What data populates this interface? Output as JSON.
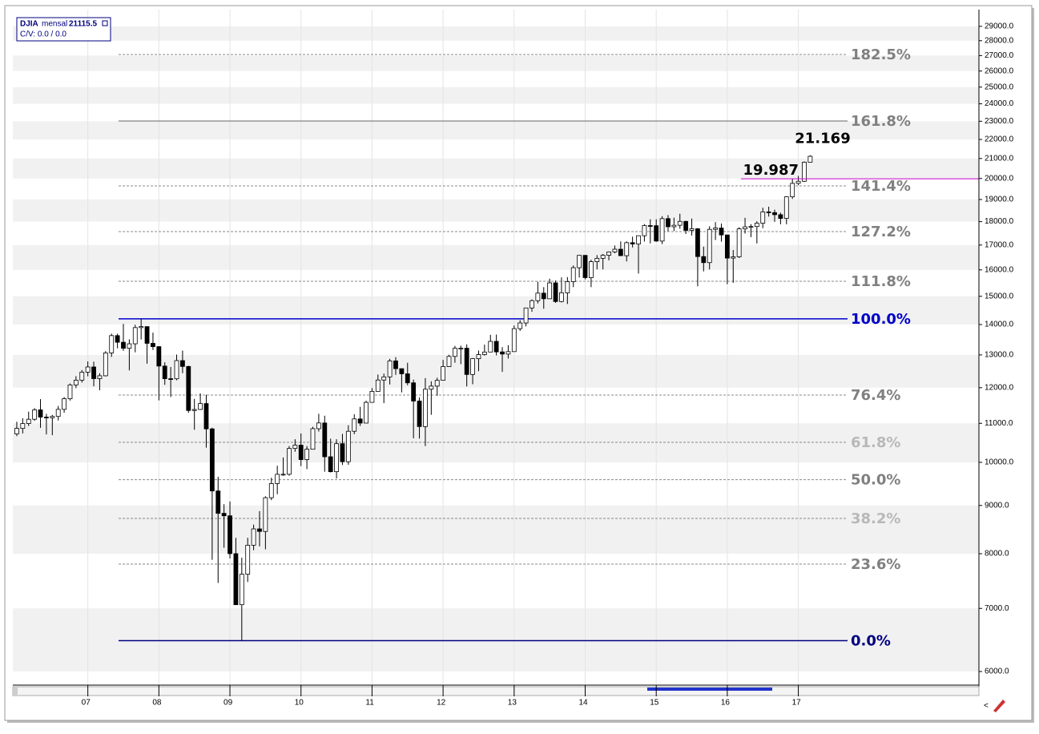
{
  "legend": {
    "symbol": "DJIA",
    "period": "mensal",
    "last_value": 21115.5,
    "cv": "C/V: 0.0 / 0.0"
  },
  "chart_data": {
    "type": "candlestick",
    "log_scale": true,
    "grid": true,
    "up_color": "#ffffff",
    "down_color": "#000000",
    "series": [
      {
        "name": "DJIA",
        "open": [
          10718,
          10864,
          10993,
          11109,
          11367,
          11168,
          11150,
          11186,
          11381,
          11679,
          12081,
          12221,
          12463,
          12622,
          12268,
          12354,
          13062,
          13627,
          13408,
          13212,
          13357,
          13896,
          13930,
          13372,
          13265,
          12650,
          12266,
          12263,
          12820,
          12638,
          11350,
          11378,
          11544,
          10851,
          9325,
          8829,
          8776,
          8001,
          7063,
          7609,
          8168,
          8500,
          8447,
          9172,
          9496,
          9712,
          9713,
          10345,
          10428,
          10067,
          10325,
          10857,
          11009,
          10137,
          9774,
          10466,
          10015,
          10788,
          11118,
          11006,
          11578,
          11892,
          12226,
          12320,
          12811,
          12570,
          12414,
          12143,
          11614,
          10913,
          11955,
          12046,
          12218,
          12633,
          12952,
          13212,
          13214,
          12393,
          12880,
          13009,
          13091,
          13437,
          13096,
          13026,
          13104,
          13861,
          14054,
          14579,
          14840,
          15116,
          14910,
          15500,
          14810,
          15130,
          15546,
          16086,
          16577,
          15699,
          16322,
          16458,
          16581,
          16717,
          16827,
          16563,
          17098,
          17043,
          17391,
          17828,
          17823,
          17165,
          18133,
          17776,
          17841,
          18011,
          17620,
          17690,
          16528,
          16285,
          17664,
          17720,
          17425,
          16466,
          16517,
          17685,
          17774,
          17787,
          17930,
          18432,
          18401,
          18308,
          18142,
          19124,
          19763,
          19864,
          20812
        ],
        "high": [
          11043,
          11137,
          11317,
          11416,
          11670,
          11258,
          11228,
          11477,
          11727,
          12124,
          12342,
          12529,
          12796,
          12786,
          12430,
          13121,
          13692,
          13692,
          14022,
          13504,
          13996,
          14198,
          13932,
          13726,
          13280,
          12767,
          12622,
          13010,
          13137,
          12658,
          11675,
          11832,
          11792,
          10883,
          9654,
          9026,
          9088,
          8316,
          7925,
          8318,
          8589,
          8877,
          9205,
          9630,
          9917,
          10119,
          10406,
          10580,
          10730,
          10406,
          10907,
          11258,
          11205,
          10594,
          10580,
          10720,
          10948,
          11245,
          11451,
          11625,
          11989,
          12391,
          12419,
          12876,
          12929,
          12570,
          12753,
          12240,
          11716,
          12284,
          12188,
          12294,
          12842,
          13005,
          13290,
          13297,
          13338,
          12899,
          13139,
          13331,
          13653,
          13662,
          13248,
          13311,
          13969,
          14149,
          14585,
          14888,
          15542,
          15340,
          15658,
          15591,
          15710,
          15721,
          16174,
          16588,
          16589,
          16399,
          16588,
          16632,
          16736,
          16979,
          17151,
          17153,
          17351,
          17395,
          17895,
          18103,
          18103,
          18244,
          18288,
          18175,
          18351,
          18040,
          18137,
          17715,
          16933,
          17799,
          17978,
          17916,
          17425,
          16795,
          17755,
          18168,
          17891,
          18017,
          18623,
          18668,
          18534,
          18399,
          19153,
          19988,
          20126,
          20851,
          21169
        ],
        "low": [
          10661,
          10731,
          10928,
          11067,
          10880,
          10706,
          10684,
          11076,
          11288,
          11628,
          11986,
          12151,
          12338,
          12039,
          11926,
          12334,
          12935,
          13211,
          13130,
          12517,
          13081,
          13498,
          12724,
          13157,
          11634,
          12083,
          11731,
          12219,
          12433,
          11287,
          10828,
          11364,
          10365,
          7882,
          7449,
          8118,
          7909,
          7063,
          6470,
          7467,
          8070,
          8144,
          8087,
          9118,
          9252,
          9679,
          9679,
          10263,
          9908,
          9835,
          10325,
          10781,
          9774,
          9757,
          9614,
          9936,
          9941,
          10711,
          10929,
          11006,
          11574,
          11892,
          11555,
          12094,
          12381,
          11862,
          12071,
          10604,
          10597,
          10405,
          11231,
          11766,
          12218,
          12623,
          12755,
          12710,
          12035,
          12101,
          12492,
          12977,
          13091,
          12983,
          12471,
          12883,
          13104,
          13784,
          13938,
          14444,
          14740,
          14551,
          14910,
          14761,
          14777,
          14720,
          15340,
          15703,
          15631,
          15340,
          16017,
          16015,
          16375,
          16659,
          16563,
          16333,
          16901,
          15855,
          17145,
          17068,
          17136,
          17037,
          17585,
          17593,
          17691,
          17465,
          17400,
          15370,
          15942,
          16013,
          17210,
          17139,
          15450,
          15503,
          16472,
          17484,
          17332,
          17063,
          17713,
          18223,
          17992,
          17884,
          17884,
          19024,
          19677,
          19831,
          20812
        ],
        "close": [
          10864,
          10993,
          11109,
          11367,
          11168,
          11150,
          11186,
          11381,
          11679,
          12081,
          12221,
          12463,
          12622,
          12268,
          12354,
          13062,
          13627,
          13408,
          13212,
          13357,
          13896,
          13930,
          13372,
          13265,
          12650,
          12266,
          12263,
          12820,
          12638,
          11350,
          11378,
          11544,
          10851,
          9325,
          8829,
          8776,
          8001,
          7063,
          7609,
          8168,
          8500,
          8447,
          9172,
          9496,
          9712,
          9713,
          10345,
          10428,
          10067,
          10325,
          10857,
          11009,
          10137,
          9774,
          10466,
          10015,
          10788,
          11118,
          11006,
          11578,
          11892,
          12226,
          12320,
          12811,
          12570,
          12414,
          12143,
          11614,
          10913,
          11955,
          12046,
          12218,
          12633,
          12952,
          13212,
          13214,
          12393,
          12880,
          13009,
          13091,
          13437,
          13096,
          13026,
          13104,
          13861,
          14054,
          14579,
          14840,
          15116,
          14910,
          15500,
          14810,
          15130,
          15546,
          16086,
          16577,
          15699,
          16322,
          16458,
          16581,
          16717,
          16827,
          16563,
          17098,
          17043,
          17391,
          17828,
          17823,
          17165,
          18133,
          17776,
          17841,
          18011,
          17620,
          17690,
          16528,
          16285,
          17664,
          17720,
          17425,
          16466,
          16517,
          17685,
          17774,
          17787,
          17930,
          18432,
          18401,
          18308,
          18142,
          19124,
          19763,
          19864,
          20812,
          21115
        ]
      }
    ],
    "xlim": [
      -0.4,
      162.5
    ],
    "xticks": [
      {
        "value": 12,
        "label": "07"
      },
      {
        "value": 24,
        "label": "08"
      },
      {
        "value": 36,
        "label": "09"
      },
      {
        "value": 48,
        "label": "10"
      },
      {
        "value": 60,
        "label": "11"
      },
      {
        "value": 72,
        "label": "12"
      },
      {
        "value": 84,
        "label": "13"
      },
      {
        "value": 96,
        "label": "14"
      },
      {
        "value": 108,
        "label": "15"
      },
      {
        "value": 120,
        "label": "16"
      },
      {
        "value": 132,
        "label": "17"
      }
    ],
    "ylim": [
      5804,
      30090
    ],
    "yticks": [
      {
        "value": 6000,
        "label": "6000.0"
      },
      {
        "value": 7000,
        "label": "7000.0"
      },
      {
        "value": 8000,
        "label": "8000.0"
      },
      {
        "value": 9000,
        "label": "9000.0"
      },
      {
        "value": 10000,
        "label": "10000.0"
      },
      {
        "value": 11000,
        "label": "11000.0"
      },
      {
        "value": 12000,
        "label": "12000.0"
      },
      {
        "value": 13000,
        "label": "13000.0"
      },
      {
        "value": 14000,
        "label": "14000.0"
      },
      {
        "value": 15000,
        "label": "15000.0"
      },
      {
        "value": 16000,
        "label": "16000.0"
      },
      {
        "value": 17000,
        "label": "17000.0"
      },
      {
        "value": 18000,
        "label": "18000.0"
      },
      {
        "value": 19000,
        "label": "19000.0"
      },
      {
        "value": 20000,
        "label": "20000.0"
      },
      {
        "value": 21000,
        "label": "21000.0"
      },
      {
        "value": 22000,
        "label": "22000.0"
      },
      {
        "value": 23000,
        "label": "23000.0"
      },
      {
        "value": 24000,
        "label": "24000.0"
      },
      {
        "value": 25000,
        "label": "25000.0"
      },
      {
        "value": 26000,
        "label": "26000.0"
      },
      {
        "value": 27000,
        "label": "27000.0"
      },
      {
        "value": 28000,
        "label": "28000.0"
      },
      {
        "value": 29000,
        "label": "29000.0"
      }
    ],
    "fib_levels": [
      {
        "label": "0.0%",
        "value": 6470,
        "color": "#000080",
        "line_color": "#000080",
        "line_style": "solid"
      },
      {
        "label": "23.6%",
        "value": 7799,
        "color": "#808080",
        "line_color": "#888888",
        "line_style": "dashed"
      },
      {
        "label": "38.2%",
        "value": 8719,
        "color": "#b8b8b8",
        "line_color": "#888888",
        "line_style": "dashed"
      },
      {
        "label": "50.0%",
        "value": 9585,
        "color": "#808080",
        "line_color": "#888888",
        "line_style": "dashed"
      },
      {
        "label": "61.8%",
        "value": 10500,
        "color": "#b8b8b8",
        "line_color": "#888888",
        "line_style": "dashed"
      },
      {
        "label": "76.4%",
        "value": 11787,
        "color": "#808080",
        "line_color": "#888888",
        "line_style": "dashed"
      },
      {
        "label": "100.0%",
        "value": 14198,
        "color": "#0000cc",
        "line_color": "#0000cc",
        "line_style": "solid"
      },
      {
        "label": "111.8%",
        "value": 15561,
        "color": "#808080",
        "line_color": "#888888",
        "line_style": "dashed"
      },
      {
        "label": "127.2%",
        "value": 17569,
        "color": "#808080",
        "line_color": "#888888",
        "line_style": "dashed"
      },
      {
        "label": "141.4%",
        "value": 19642,
        "color": "#808080",
        "line_color": "#888888",
        "line_style": "dashed"
      },
      {
        "label": "161.8%",
        "value": 23016,
        "color": "#808080",
        "line_color": "#666666",
        "line_style": "solid"
      },
      {
        "label": "182.5%",
        "value": 27073,
        "color": "#808080",
        "line_color": "#888888",
        "line_style": "dashed"
      }
    ],
    "annotations": [
      {
        "label": "21.169",
        "value": 21169
      },
      {
        "label": "19.987",
        "value": 19987,
        "line_color": "#cc00cc"
      }
    ]
  }
}
